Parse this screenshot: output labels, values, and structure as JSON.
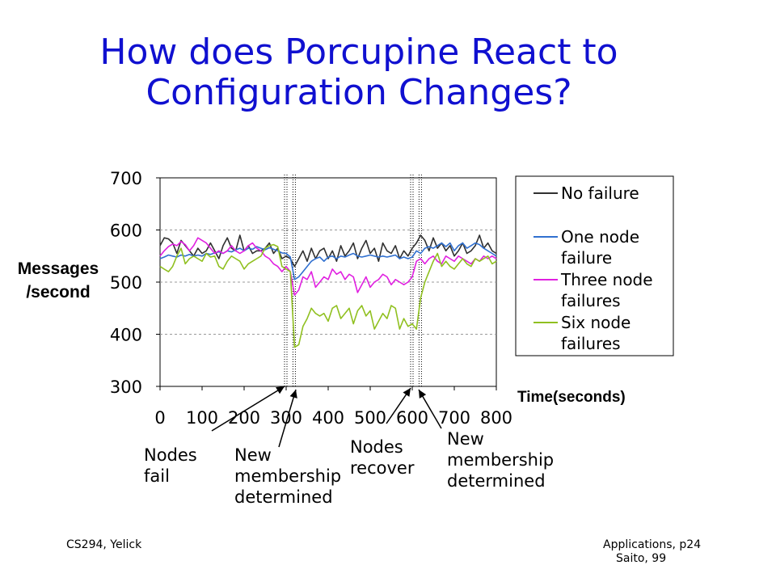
{
  "slide": {
    "title_line1": "How does Porcupine React to",
    "title_line2": "Configuration Changes?",
    "annotations": {
      "nodes_fail": [
        "Nodes",
        "fail"
      ],
      "new_membership_1": [
        "New",
        "membership",
        "determined"
      ],
      "nodes_recover": [
        "Nodes",
        "recover"
      ],
      "new_membership_2": [
        "New",
        "membership",
        "determined"
      ]
    },
    "footer_left": "CS294, Yelick",
    "footer_right": "Applications, p24",
    "footer_credit": "Saito, 99"
  },
  "chart_data": {
    "type": "line",
    "title": "",
    "ylabel": "Messages /second",
    "ylabel_lines": [
      "Messages",
      "/second"
    ],
    "xlabel": "Time(seconds)",
    "xlim": [
      0,
      800
    ],
    "ylim": [
      300,
      700
    ],
    "xticks": [
      0,
      100,
      200,
      300,
      400,
      500,
      600,
      700,
      800
    ],
    "yticks": [
      300,
      400,
      500,
      600,
      700
    ],
    "grid": "horizontal dashed",
    "legend": "right",
    "event_markers": [
      300,
      320,
      600,
      620
    ],
    "x": [
      0,
      10,
      20,
      30,
      40,
      50,
      60,
      70,
      80,
      90,
      100,
      110,
      120,
      130,
      140,
      150,
      160,
      170,
      180,
      190,
      200,
      210,
      220,
      230,
      240,
      250,
      260,
      270,
      280,
      290,
      300,
      310,
      320,
      330,
      340,
      350,
      360,
      370,
      380,
      390,
      400,
      410,
      420,
      430,
      440,
      450,
      460,
      470,
      480,
      490,
      500,
      510,
      520,
      530,
      540,
      550,
      560,
      570,
      580,
      590,
      600,
      610,
      620,
      630,
      640,
      650,
      660,
      670,
      680,
      690,
      700,
      710,
      720,
      730,
      740,
      750,
      760,
      770,
      780,
      790,
      800
    ],
    "series": [
      {
        "name": "No failure",
        "color": "#303030",
        "values": [
          570,
          585,
          583,
          575,
          555,
          580,
          570,
          560,
          550,
          565,
          555,
          560,
          575,
          560,
          545,
          570,
          585,
          565,
          560,
          590,
          560,
          570,
          555,
          560,
          560,
          565,
          575,
          555,
          565,
          545,
          550,
          545,
          530,
          545,
          560,
          540,
          565,
          545,
          560,
          565,
          545,
          560,
          540,
          570,
          550,
          560,
          575,
          545,
          565,
          580,
          555,
          565,
          540,
          575,
          560,
          555,
          570,
          545,
          560,
          550,
          565,
          575,
          590,
          580,
          560,
          585,
          565,
          575,
          560,
          570,
          550,
          560,
          575,
          555,
          560,
          570,
          590,
          565,
          575,
          560,
          555
        ]
      },
      {
        "name": "One node failure",
        "color": "#3070d0",
        "values": [
          545,
          548,
          552,
          550,
          548,
          552,
          550,
          553,
          550,
          552,
          550,
          555,
          553,
          556,
          558,
          555,
          560,
          558,
          562,
          565,
          560,
          565,
          563,
          568,
          565,
          562,
          566,
          563,
          560,
          556,
          555,
          548,
          505,
          510,
          520,
          530,
          540,
          545,
          548,
          540,
          548,
          550,
          545,
          550,
          548,
          552,
          555,
          550,
          548,
          550,
          552,
          550,
          548,
          550,
          548,
          550,
          552,
          545,
          548,
          545,
          548,
          560,
          555,
          565,
          568,
          565,
          570,
          575,
          568,
          575,
          560,
          570,
          575,
          565,
          570,
          575,
          572,
          565,
          560,
          555,
          550
        ]
      },
      {
        "name": "Three node failures",
        "color": "#e020e0",
        "values": [
          550,
          560,
          568,
          573,
          570,
          578,
          572,
          560,
          570,
          585,
          580,
          575,
          565,
          555,
          560,
          555,
          560,
          570,
          560,
          555,
          560,
          570,
          575,
          565,
          560,
          550,
          545,
          535,
          530,
          520,
          530,
          520,
          475,
          485,
          510,
          505,
          520,
          490,
          500,
          510,
          505,
          525,
          515,
          520,
          505,
          515,
          510,
          480,
          495,
          510,
          490,
          500,
          505,
          515,
          510,
          495,
          505,
          500,
          495,
          500,
          510,
          540,
          545,
          535,
          545,
          550,
          540,
          535,
          550,
          545,
          540,
          550,
          545,
          540,
          535,
          545,
          540,
          550,
          545,
          550,
          545
        ]
      },
      {
        "name": "Six node failures",
        "color": "#90c020",
        "values": [
          530,
          525,
          520,
          530,
          550,
          565,
          535,
          545,
          550,
          545,
          540,
          555,
          548,
          550,
          530,
          525,
          540,
          550,
          545,
          540,
          525,
          535,
          540,
          545,
          550,
          565,
          570,
          572,
          568,
          530,
          525,
          520,
          375,
          380,
          415,
          430,
          450,
          440,
          435,
          440,
          425,
          450,
          455,
          430,
          440,
          450,
          420,
          445,
          455,
          435,
          445,
          410,
          425,
          440,
          430,
          455,
          450,
          410,
          430,
          415,
          420,
          410,
          470,
          500,
          520,
          540,
          555,
          530,
          540,
          530,
          525,
          535,
          545,
          535,
          530,
          545,
          540,
          545,
          550,
          535,
          540
        ]
      }
    ]
  }
}
